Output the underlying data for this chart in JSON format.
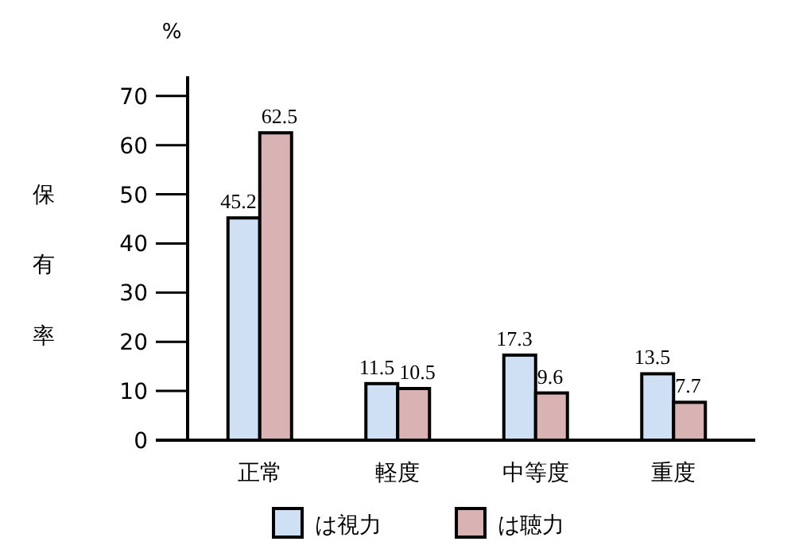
{
  "chart_data": {
    "type": "bar",
    "ylabel": "保有率",
    "annotations": [
      "%"
    ],
    "categories": [
      "正常",
      "軽度",
      "中等度",
      "重度"
    ],
    "series": [
      {
        "name": "は視力",
        "color": "#cfe0f5",
        "values": [
          45.2,
          11.5,
          17.3,
          13.5
        ]
      },
      {
        "name": "は聴力",
        "color": "#d9b3b3",
        "values": [
          62.5,
          10.5,
          9.6,
          7.7
        ]
      }
    ],
    "ylim": [
      0,
      74
    ],
    "yticks": [
      0,
      10,
      20,
      30,
      40,
      50,
      60,
      70
    ],
    "data_labels": true,
    "grid": false,
    "legend": "bottom"
  }
}
